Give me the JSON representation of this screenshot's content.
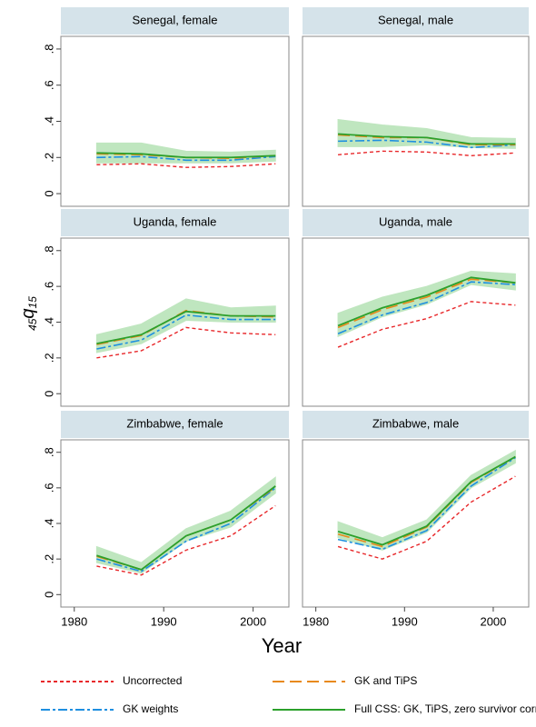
{
  "chart_data": {
    "type": "line",
    "ylabel": {
      "pre": "45",
      "main": "q",
      "sub": "15"
    },
    "xlabel": "Year",
    "x": [
      1982.5,
      1987.5,
      1992.5,
      1997.5,
      2002.5
    ],
    "xlim": [
      1978.5,
      2004
    ],
    "ylim": [
      -0.07,
      0.87
    ],
    "xticks": [
      1980,
      1990,
      2000
    ],
    "yticks": [
      0,
      {
        "value": 0.2,
        "label": ".2"
      },
      {
        "value": 0.4,
        "label": ".4"
      },
      {
        "value": 0.6,
        "label": ".6"
      },
      {
        "value": 0.8,
        "label": ".8"
      }
    ],
    "series": [
      {
        "name": "Uncorrected",
        "color": "#e8272a"
      },
      {
        "name": "GK weights",
        "color": "#1e8fe0"
      },
      {
        "name": "GK and TiPS",
        "color": "#e8891a"
      },
      {
        "name": "Full CSS: GK, TiPS, zero survivor correction",
        "color": "#2ca02c"
      }
    ],
    "band_color": "#bfe6bf",
    "panels": [
      {
        "title": "Senegal, female",
        "values": [
          [
            0.16,
            0.165,
            0.145,
            0.15,
            0.165
          ],
          [
            0.2,
            0.205,
            0.185,
            0.185,
            0.205
          ],
          [
            0.22,
            0.215,
            0.2,
            0.195,
            0.21
          ],
          [
            0.225,
            0.22,
            0.2,
            0.2,
            0.21
          ]
        ],
        "lower": [
          0.17,
          0.17,
          0.17,
          0.17,
          0.18
        ],
        "upper": [
          0.28,
          0.28,
          0.235,
          0.23,
          0.24
        ]
      },
      {
        "title": "Senegal, male",
        "values": [
          [
            0.215,
            0.235,
            0.23,
            0.21,
            0.225
          ],
          [
            0.29,
            0.295,
            0.285,
            0.255,
            0.27
          ],
          [
            0.325,
            0.31,
            0.31,
            0.27,
            0.27
          ],
          [
            0.33,
            0.315,
            0.31,
            0.275,
            0.275
          ]
        ],
        "lower": [
          0.26,
          0.26,
          0.27,
          0.255,
          0.25
        ],
        "upper": [
          0.41,
          0.38,
          0.36,
          0.31,
          0.305
        ]
      },
      {
        "title": "Uganda, female",
        "values": [
          [
            0.2,
            0.24,
            0.37,
            0.34,
            0.33
          ],
          [
            0.25,
            0.3,
            0.44,
            0.415,
            0.415
          ],
          [
            0.275,
            0.325,
            0.465,
            0.435,
            0.43
          ],
          [
            0.28,
            0.33,
            0.46,
            0.435,
            0.435
          ]
        ],
        "lower": [
          0.23,
          0.28,
          0.41,
          0.4,
          0.4
        ],
        "upper": [
          0.33,
          0.39,
          0.53,
          0.48,
          0.49
        ]
      },
      {
        "title": "Uganda, male",
        "values": [
          [
            0.26,
            0.36,
            0.42,
            0.515,
            0.495
          ],
          [
            0.335,
            0.44,
            0.51,
            0.625,
            0.61
          ],
          [
            0.37,
            0.47,
            0.54,
            0.64,
            0.62
          ],
          [
            0.38,
            0.48,
            0.55,
            0.65,
            0.62
          ]
        ],
        "lower": [
          0.32,
          0.43,
          0.5,
          0.61,
          0.58
        ],
        "upper": [
          0.45,
          0.54,
          0.6,
          0.685,
          0.67
        ]
      },
      {
        "title": "Zimbabwe, female",
        "values": [
          [
            0.16,
            0.11,
            0.25,
            0.33,
            0.5
          ],
          [
            0.2,
            0.13,
            0.3,
            0.4,
            0.6
          ],
          [
            0.215,
            0.14,
            0.33,
            0.42,
            0.605
          ],
          [
            0.22,
            0.14,
            0.33,
            0.42,
            0.61
          ]
        ],
        "lower": [
          0.18,
          0.12,
          0.3,
          0.38,
          0.57
        ],
        "upper": [
          0.27,
          0.18,
          0.37,
          0.47,
          0.66
        ]
      },
      {
        "title": "Zimbabwe, male",
        "values": [
          [
            0.27,
            0.2,
            0.3,
            0.52,
            0.665
          ],
          [
            0.31,
            0.255,
            0.36,
            0.61,
            0.77
          ],
          [
            0.34,
            0.27,
            0.38,
            0.63,
            0.775
          ],
          [
            0.355,
            0.28,
            0.385,
            0.635,
            0.775
          ]
        ],
        "lower": [
          0.32,
          0.25,
          0.35,
          0.6,
          0.74
        ],
        "upper": [
          0.41,
          0.32,
          0.42,
          0.67,
          0.81
        ]
      }
    ]
  }
}
